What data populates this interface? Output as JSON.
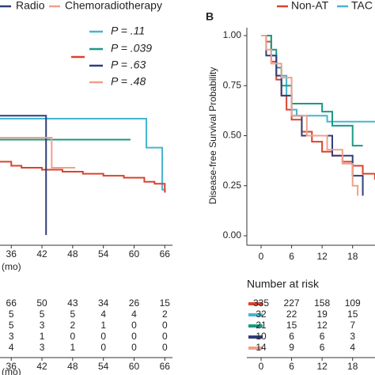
{
  "chart_data": [
    {
      "type": "line",
      "step": true,
      "x_label": "(mo)",
      "xlim": [
        33.8,
        67.5
      ],
      "ylim": [
        0,
        1
      ],
      "xticks": [
        36,
        42,
        48,
        54,
        60,
        66
      ],
      "series": [
        {
          "color": "#45b5d0",
          "p_label": "P = .11",
          "x": [
            33.8,
            62.4,
            65.5,
            66.2
          ],
          "values": [
            0.585,
            0.44,
            0.23,
            0.23
          ]
        },
        {
          "color": "#1a9a82",
          "p_label": "P = .039",
          "x": [
            33.8,
            59.3
          ],
          "values": [
            0.48,
            0.48
          ]
        },
        {
          "color": "#d9432e",
          "x": [
            33.8,
            36,
            38,
            42,
            46,
            50,
            54,
            58,
            62,
            64,
            66,
            66.2
          ],
          "values": [
            0.37,
            0.35,
            0.34,
            0.33,
            0.32,
            0.31,
            0.3,
            0.29,
            0.27,
            0.26,
            0.22,
            0.22
          ]
        },
        {
          "name": "Radio",
          "color": "#2f3f7a",
          "p_label": "P = .63",
          "x": [
            33.8,
            42.8
          ],
          "values": [
            0.6,
            0.004
          ]
        },
        {
          "name": "Chemoradiotherapy",
          "color": "#f0a08a",
          "p_label": "P = .48",
          "x": [
            33.8,
            43.9,
            48.5
          ],
          "values": [
            0.49,
            0.34,
            0.34
          ]
        }
      ],
      "risk_table": {
        "x_label": "(mo)",
        "xticks": [
          36,
          42,
          48,
          54,
          60,
          66
        ],
        "rows": [
          [
            66,
            50,
            43,
            34,
            26,
            15
          ],
          [
            5,
            5,
            5,
            4,
            4,
            2
          ],
          [
            5,
            3,
            2,
            1,
            0,
            0
          ],
          [
            3,
            1,
            0,
            0,
            0,
            0
          ],
          [
            4,
            3,
            1,
            0,
            0,
            0
          ]
        ]
      }
    },
    {
      "type": "line",
      "step": true,
      "panel_label": "B",
      "y_label": "Disease-free Survival Probability",
      "xlim": [
        -2.8,
        22.4
      ],
      "ylim": [
        0,
        1
      ],
      "xticks": [
        0,
        6,
        12,
        18
      ],
      "yticks": [
        {
          "value": 1,
          "label": "1.00"
        },
        {
          "value": 0.75,
          "label": "0.75"
        },
        {
          "value": 0.5,
          "label": "0.50"
        },
        {
          "value": 0.25,
          "label": "0.25"
        },
        {
          "value": 0,
          "label": "0.00"
        }
      ],
      "series": [
        {
          "name": "Non-AT",
          "color": "#d9432e",
          "x": [
            0,
            1,
            2,
            3,
            4,
            5,
            6,
            8,
            10,
            12,
            14,
            16,
            18,
            20,
            22.4
          ],
          "values": [
            1,
            0.97,
            0.87,
            0.78,
            0.7,
            0.63,
            0.58,
            0.52,
            0.47,
            0.42,
            0.4,
            0.37,
            0.35,
            0.31,
            0.28
          ]
        },
        {
          "name": "TAC",
          "color": "#45b5d0",
          "x": [
            0,
            2,
            3,
            5,
            6,
            7,
            13,
            22.4
          ],
          "values": [
            1,
            0.9,
            0.8,
            0.7,
            0.63,
            0.6,
            0.57,
            0.57
          ]
        },
        {
          "color": "#1a9a82",
          "x": [
            0,
            2,
            3,
            4,
            6,
            12,
            14,
            18,
            20
          ],
          "values": [
            1,
            0.93,
            0.84,
            0.75,
            0.66,
            0.62,
            0.55,
            0.45,
            0.45
          ]
        },
        {
          "color": "#2f3f7a",
          "x": [
            0,
            1,
            3,
            4,
            6,
            8,
            14,
            18,
            20
          ],
          "values": [
            1,
            0.9,
            0.8,
            0.7,
            0.6,
            0.5,
            0.4,
            0.3,
            0.2
          ]
        },
        {
          "color": "#f0a08a",
          "x": [
            0,
            1,
            2,
            4,
            6,
            9,
            13,
            16,
            18,
            19
          ],
          "values": [
            1,
            0.93,
            0.86,
            0.79,
            0.6,
            0.5,
            0.43,
            0.36,
            0.25,
            0.2
          ]
        }
      ],
      "risk_table": {
        "title": "Number at risk",
        "xticks": [
          0,
          6,
          12,
          18
        ],
        "rows": [
          [
            335,
            227,
            158,
            109
          ],
          [
            32,
            22,
            19,
            15
          ],
          [
            21,
            15,
            12,
            7
          ],
          [
            10,
            6,
            6,
            3
          ],
          [
            14,
            9,
            6,
            4
          ]
        ]
      }
    }
  ]
}
